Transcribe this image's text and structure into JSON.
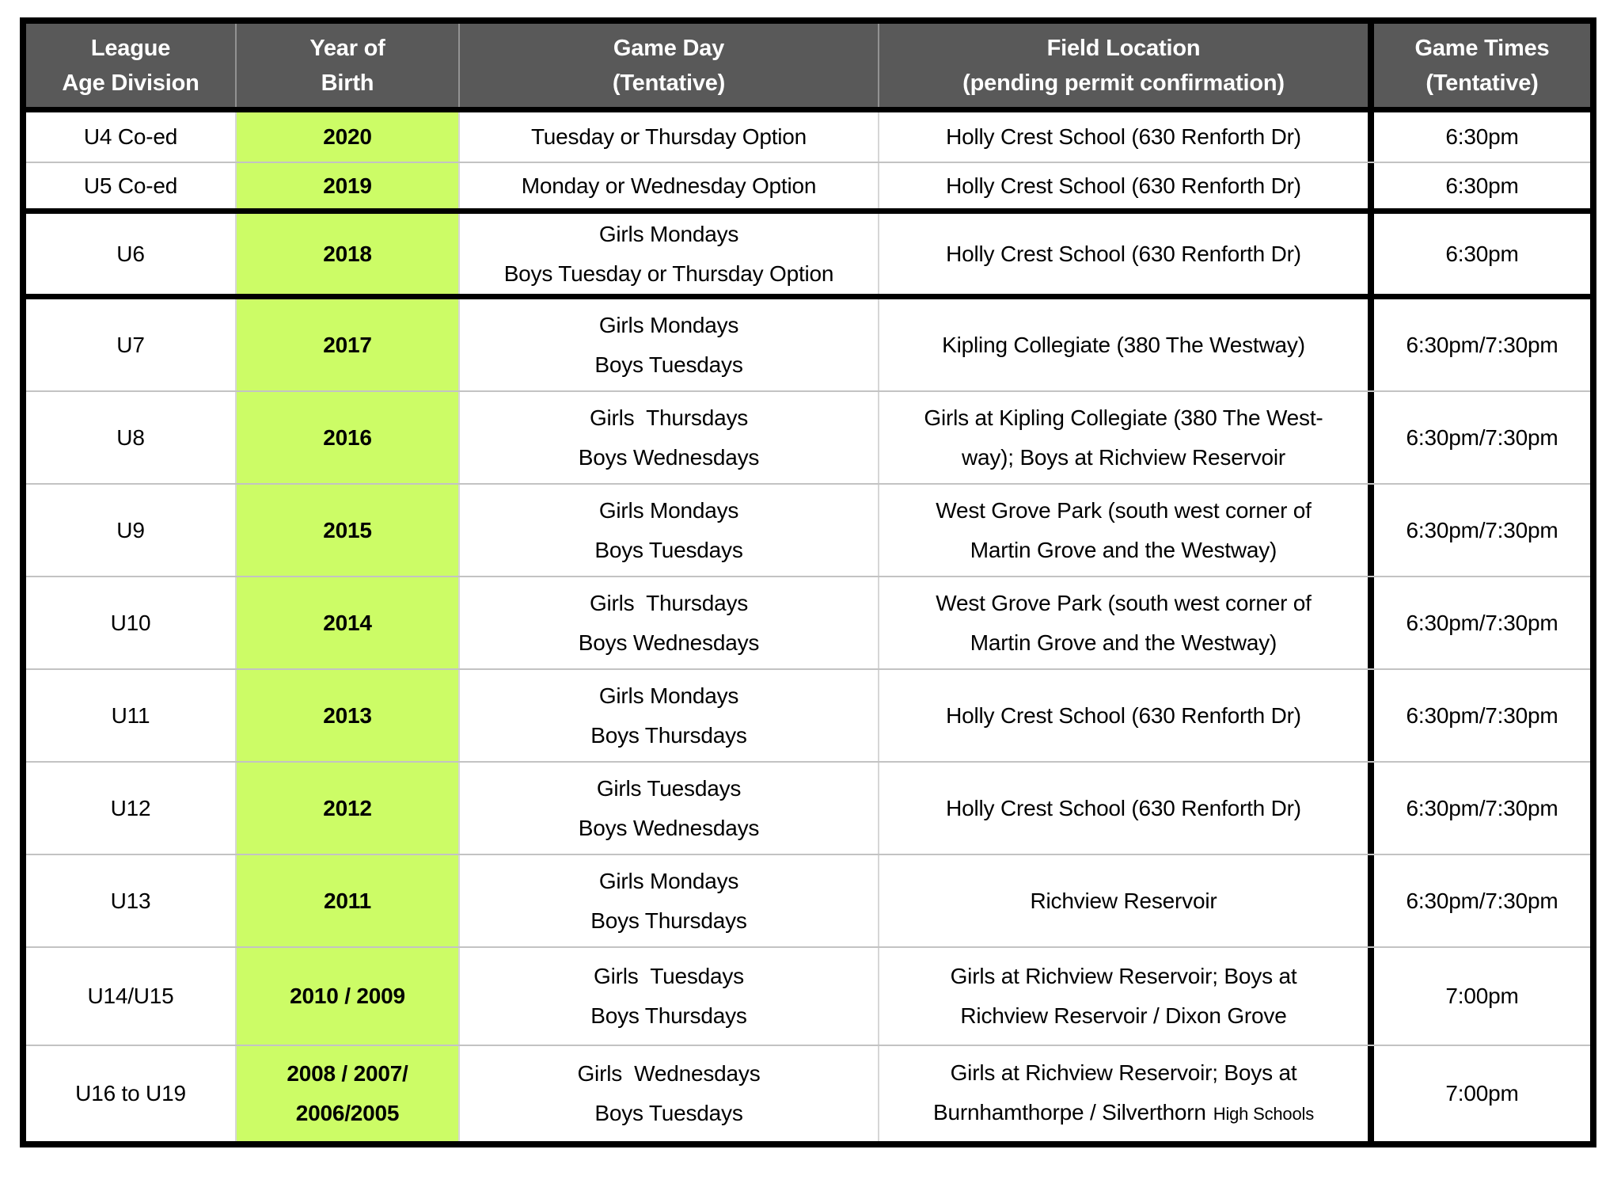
{
  "colors": {
    "header_bg": "#595959",
    "header_text": "#ffffff",
    "year_bg": "#ccfc66",
    "border_thick": "#000000",
    "border_thin": "#c3c3c3"
  },
  "header": {
    "league": [
      "League",
      "Age Division"
    ],
    "year": [
      "Year of",
      "Birth"
    ],
    "day": [
      "Game Day",
      "(Tentative)"
    ],
    "field": [
      "Field Location",
      "(pending permit confirmation)"
    ],
    "times": [
      "Game Times",
      "(Tentative)"
    ]
  },
  "rows": [
    {
      "division": "U4 Co-ed",
      "year": [
        "2020"
      ],
      "days": [
        "Tuesday or Thursday Option"
      ],
      "field": [
        "Holly Crest School (630 Renforth Dr)"
      ],
      "time": "6:30pm"
    },
    {
      "division": "U5 Co-ed",
      "year": [
        "2019"
      ],
      "days": [
        "Monday or Wednesday Option"
      ],
      "field": [
        "Holly Crest School (630 Renforth Dr)"
      ],
      "time": "6:30pm"
    },
    {
      "division": "U6",
      "year": [
        "2018"
      ],
      "days": [
        "Girls Mondays",
        "Boys Tuesday or Thursday Option"
      ],
      "field": [
        "Holly Crest School (630 Renforth Dr)"
      ],
      "time": "6:30pm"
    },
    {
      "division": "U7",
      "year": [
        "2017"
      ],
      "days": [
        "Girls Mondays",
        "Boys Tuesdays"
      ],
      "field": [
        "Kipling Collegiate (380 The Westway)"
      ],
      "time": "6:30pm/7:30pm"
    },
    {
      "division": "U8",
      "year": [
        "2016"
      ],
      "days": [
        "Girls  Thursdays",
        "Boys Wednesdays"
      ],
      "field": [
        "Girls at Kipling Collegiate (380 The West-",
        "way); Boys at Richview Reservoir"
      ],
      "time": "6:30pm/7:30pm"
    },
    {
      "division": "U9",
      "year": [
        "2015"
      ],
      "days": [
        "Girls Mondays",
        "Boys Tuesdays"
      ],
      "field": [
        "West Grove Park (south west corner of",
        "Martin Grove and the Westway)"
      ],
      "time": "6:30pm/7:30pm"
    },
    {
      "division": "U10",
      "year": [
        "2014"
      ],
      "days": [
        "Girls  Thursdays",
        "Boys Wednesdays"
      ],
      "field": [
        "West Grove Park (south west corner of",
        "Martin Grove and the Westway)"
      ],
      "time": "6:30pm/7:30pm"
    },
    {
      "division": "U11",
      "year": [
        "2013"
      ],
      "days": [
        "Girls Mondays",
        "Boys Thursdays"
      ],
      "field": [
        "Holly Crest School (630 Renforth Dr)"
      ],
      "time": "6:30pm/7:30pm"
    },
    {
      "division": "U12",
      "year": [
        "2012"
      ],
      "days": [
        "Girls Tuesdays",
        "Boys Wednesdays"
      ],
      "field": [
        "Holly Crest School (630 Renforth Dr)"
      ],
      "time": "6:30pm/7:30pm"
    },
    {
      "division": "U13",
      "year": [
        "2011"
      ],
      "days": [
        "Girls Mondays",
        "Boys Thursdays"
      ],
      "field": [
        "Richview Reservoir"
      ],
      "time": "6:30pm/7:30pm"
    },
    {
      "division": "U14/U15",
      "year": [
        "2010 / 2009"
      ],
      "days": [
        "Girls  Tuesdays",
        "Boys Thursdays"
      ],
      "field": [
        "Girls at Richview Reservoir; Boys at",
        "Richview Reservoir / Dixon Grove"
      ],
      "time": "7:00pm"
    },
    {
      "division": "U16 to U19",
      "year": [
        "2008 / 2007/",
        "2006/2005"
      ],
      "days": [
        "Girls  Wednesdays",
        "Boys Tuesdays"
      ],
      "field": [
        "Girls at Richview Reservoir; Boys at",
        "Burnhamthorpe / Silverthorn"
      ],
      "field_small": "High Schools",
      "time": "7:00pm"
    }
  ]
}
